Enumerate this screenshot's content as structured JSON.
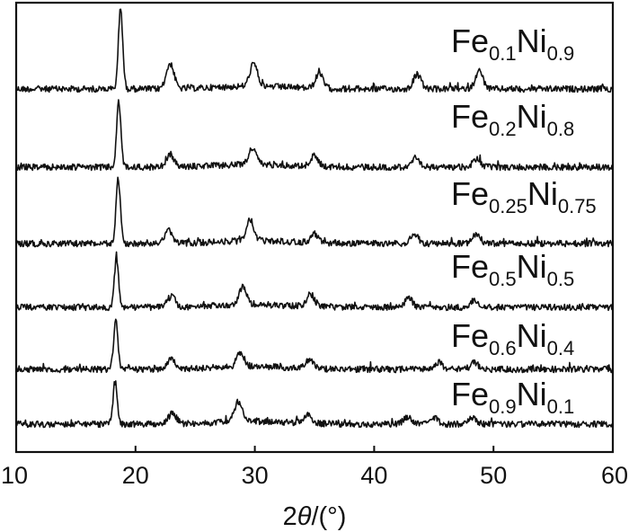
{
  "chart_data": {
    "type": "line",
    "title": "",
    "xlabel": {
      "prefix": "2",
      "var": "θ",
      "suffix": "/(°)"
    },
    "ylabel": "",
    "xlim": [
      10,
      60
    ],
    "x_ticks": [
      10,
      20,
      30,
      40,
      50,
      60
    ],
    "grid": false,
    "legend": "inline labels at right of each trace",
    "series": [
      {
        "label": {
          "a": "Fe",
          "a_sub": "0.1",
          "b": "Ni",
          "b_sub": "0.9"
        },
        "peaks": [
          [
            18.75,
            90
          ],
          [
            22.9,
            28
          ],
          [
            29.9,
            25
          ],
          [
            35.4,
            16
          ],
          [
            43.6,
            16
          ],
          [
            48.8,
            20
          ]
        ]
      },
      {
        "label": {
          "a": "Fe",
          "a_sub": "0.2",
          "b": "Ni",
          "b_sub": "0.8"
        },
        "peaks": [
          [
            18.6,
            72
          ],
          [
            22.9,
            14
          ],
          [
            29.8,
            18
          ],
          [
            35.0,
            12
          ],
          [
            43.4,
            10
          ],
          [
            48.6,
            9
          ]
        ]
      },
      {
        "label": {
          "a": "Fe",
          "a_sub": "0.25",
          "b": "Ni",
          "b_sub": "0.75"
        },
        "peaks": [
          [
            18.55,
            72
          ],
          [
            22.8,
            14
          ],
          [
            29.6,
            24
          ],
          [
            35.0,
            10
          ],
          [
            43.4,
            10
          ],
          [
            48.6,
            11
          ]
        ]
      },
      {
        "label": {
          "a": "Fe",
          "a_sub": "0.5",
          "b": "Ni",
          "b_sub": "0.5"
        },
        "peaks": [
          [
            18.4,
            54
          ],
          [
            23.0,
            12
          ],
          [
            29.0,
            20
          ],
          [
            34.7,
            13
          ],
          [
            42.9,
            10
          ],
          [
            48.4,
            8
          ]
        ]
      },
      {
        "label": {
          "a": "Fe",
          "a_sub": "0.6",
          "b": "Ni",
          "b_sub": "0.4"
        },
        "peaks": [
          [
            18.35,
            54
          ],
          [
            23.0,
            12
          ],
          [
            28.8,
            16
          ],
          [
            34.6,
            10
          ],
          [
            45.4,
            8
          ],
          [
            48.4,
            8
          ]
        ]
      },
      {
        "label": {
          "a": "Fe",
          "a_sub": "0.9",
          "b": "Ni",
          "b_sub": "0.1"
        },
        "peaks": [
          [
            18.3,
            46
          ],
          [
            23.1,
            12
          ],
          [
            28.6,
            22
          ],
          [
            34.4,
            10
          ],
          [
            42.8,
            8
          ],
          [
            45.0,
            8
          ],
          [
            48.2,
            8
          ]
        ]
      }
    ]
  }
}
